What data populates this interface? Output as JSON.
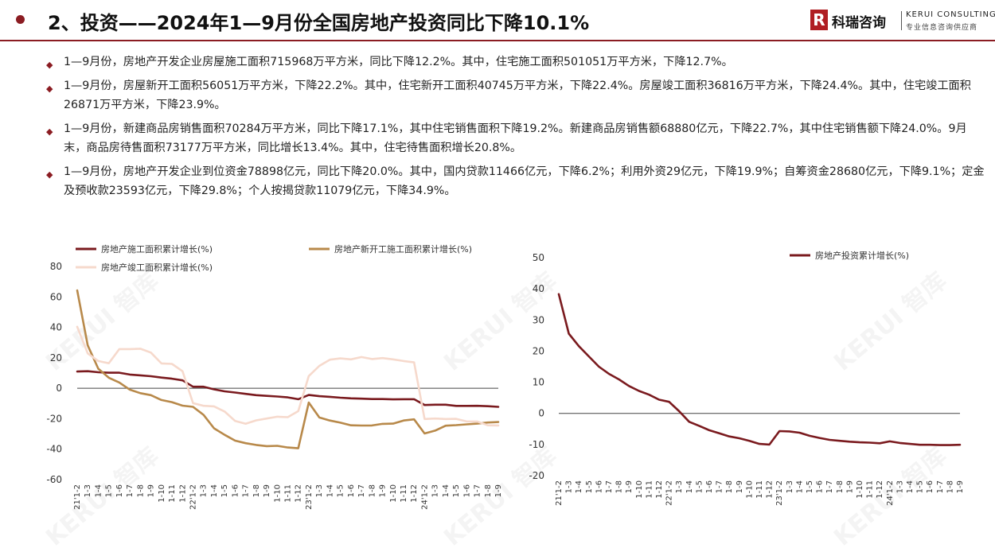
{
  "header": {
    "title": "2、投资——2024年1—9月份全国房地产投资同比下降10.1%",
    "logo_mark": "R",
    "logo_cn": "科瑞咨询",
    "logo_en": "KERUI CONSULTING",
    "logo_sub": "专业信息咨询供应商"
  },
  "bullets": [
    "1—9月份，房地产开发企业房屋施工面积715968万平方米，同比下降12.2%。其中，住宅施工面积501051万平方米，下降12.7%。",
    "1—9月份，房屋新开工面积56051万平方米，下降22.2%。其中，住宅新开工面积40745万平方米，下降22.4%。房屋竣工面积36816万平方米，下降24.4%。其中，住宅竣工面积26871万平方米，下降23.9%。",
    "1—9月份，新建商品房销售面积70284万平方米，同比下降17.1%，其中住宅销售面积下降19.2%。新建商品房销售额68880亿元，下降22.7%，其中住宅销售额下降24.0%。9月末，商品房待售面积73177万平方米，同比增长13.4%。其中，住宅待售面积增长20.8%。",
    "1—9月份，房地产开发企业到位资金78898亿元，同比下降20.0%。其中，国内贷款11466亿元，下降6.2%；利用外资29亿元，下降19.9%；自筹资金28680亿元，下降9.1%；定金及预收款23593亿元，下降29.8%；个人按揭贷款11079亿元，下降34.9%。"
  ],
  "watermark": "KERUI 智库",
  "chart_data": [
    {
      "type": "line",
      "x": [
        "21'1-2",
        "1-3",
        "1-4",
        "1-5",
        "1-6",
        "1-7",
        "1-8",
        "1-9",
        "1-10",
        "1-11",
        "1-12",
        "22'1-2",
        "1-3",
        "1-4",
        "1-5",
        "1-6",
        "1-7",
        "1-8",
        "1-9",
        "1-10",
        "1-11",
        "1-12",
        "23'1-2",
        "1-3",
        "1-4",
        "1-5",
        "1-6",
        "1-7",
        "1-8",
        "1-9",
        "1-10",
        "1-11",
        "1-12",
        "24'1-2",
        "1-3",
        "1-4",
        "1-5",
        "1-6",
        "1-7",
        "1-8",
        "1-9"
      ],
      "ylim": [
        -60,
        80
      ],
      "yticks": [
        80,
        60,
        40,
        20,
        0,
        -20,
        -40,
        -60
      ],
      "legend_position": "top",
      "series": [
        {
          "name": "房地产施工面积累计增长(%)",
          "color": "#7a1a1e",
          "values": [
            11.0,
            11.2,
            10.5,
            10.2,
            10.2,
            9.0,
            8.5,
            7.9,
            7.0,
            6.3,
            5.2,
            1.0,
            1.0,
            -0.7,
            -2.0,
            -2.8,
            -3.7,
            -4.5,
            -5.0,
            -5.4,
            -6.0,
            -7.2,
            -4.4,
            -5.2,
            -5.6,
            -6.2,
            -6.6,
            -6.8,
            -7.1,
            -7.1,
            -7.3,
            -7.2,
            -7.2,
            -11.0,
            -10.8,
            -10.8,
            -11.6,
            -11.6,
            -11.5,
            -11.8,
            -12.2
          ]
        },
        {
          "name": "房地产新开工施工面积累计增长(%)",
          "color": "#b8894a",
          "values": [
            64.3,
            28.2,
            12.8,
            6.9,
            3.8,
            -0.9,
            -3.2,
            -4.5,
            -7.7,
            -9.1,
            -11.4,
            -12.2,
            -17.5,
            -26.3,
            -30.6,
            -34.4,
            -36.1,
            -37.2,
            -38.0,
            -37.8,
            -38.9,
            -39.4,
            -9.4,
            -19.2,
            -21.2,
            -22.6,
            -24.3,
            -24.5,
            -24.4,
            -23.4,
            -23.2,
            -21.2,
            -20.4,
            -29.7,
            -27.8,
            -24.6,
            -24.2,
            -23.7,
            -23.2,
            -22.5,
            -22.2
          ]
        },
        {
          "name": "房地产竣工面积累计增长(%)",
          "color": "#f6d9cc",
          "values": [
            40.4,
            22.9,
            17.9,
            16.4,
            25.7,
            25.7,
            26.0,
            23.4,
            16.3,
            16.0,
            11.2,
            -9.8,
            -11.5,
            -11.9,
            -15.3,
            -21.5,
            -23.3,
            -21.1,
            -19.9,
            -18.7,
            -19.0,
            -15.0,
            8.0,
            14.7,
            18.8,
            19.6,
            19.0,
            20.5,
            19.2,
            19.8,
            19.0,
            17.9,
            17.0,
            -20.2,
            -19.9,
            -20.2,
            -20.1,
            -21.8,
            -21.8,
            -24.3,
            -24.4
          ]
        }
      ]
    },
    {
      "type": "line",
      "x": [
        "21'1-2",
        "1-3",
        "1-4",
        "1-5",
        "1-6",
        "1-7",
        "1-8",
        "1-9",
        "1-10",
        "1-11",
        "1-12",
        "22'1-2",
        "1-3",
        "1-4",
        "1-5",
        "1-6",
        "1-7",
        "1-8",
        "1-9",
        "1-10",
        "1-11",
        "1-12",
        "23'1-2",
        "1-3",
        "1-4",
        "1-5",
        "1-6",
        "1-7",
        "1-8",
        "1-9",
        "1-10",
        "1-11",
        "1-12",
        "24'1-2",
        "1-3",
        "1-4",
        "1-5",
        "1-6",
        "1-7",
        "1-8",
        "1-9"
      ],
      "ylim": [
        -20,
        50
      ],
      "yticks": [
        50,
        40,
        30,
        20,
        10,
        0,
        -10,
        -20
      ],
      "legend_position": "top-right",
      "series": [
        {
          "name": "房地产投资累计增长(%)",
          "color": "#7a1a1e",
          "values": [
            38.3,
            25.6,
            21.6,
            18.3,
            15.0,
            12.7,
            10.9,
            8.8,
            7.2,
            6.0,
            4.4,
            3.7,
            0.7,
            -2.7,
            -4.0,
            -5.4,
            -6.4,
            -7.4,
            -8.0,
            -8.8,
            -9.8,
            -10.0,
            -5.7,
            -5.8,
            -6.2,
            -7.2,
            -7.9,
            -8.5,
            -8.8,
            -9.1,
            -9.3,
            -9.4,
            -9.6,
            -9.0,
            -9.5,
            -9.8,
            -10.1,
            -10.1,
            -10.2,
            -10.2,
            -10.1
          ]
        }
      ]
    }
  ]
}
